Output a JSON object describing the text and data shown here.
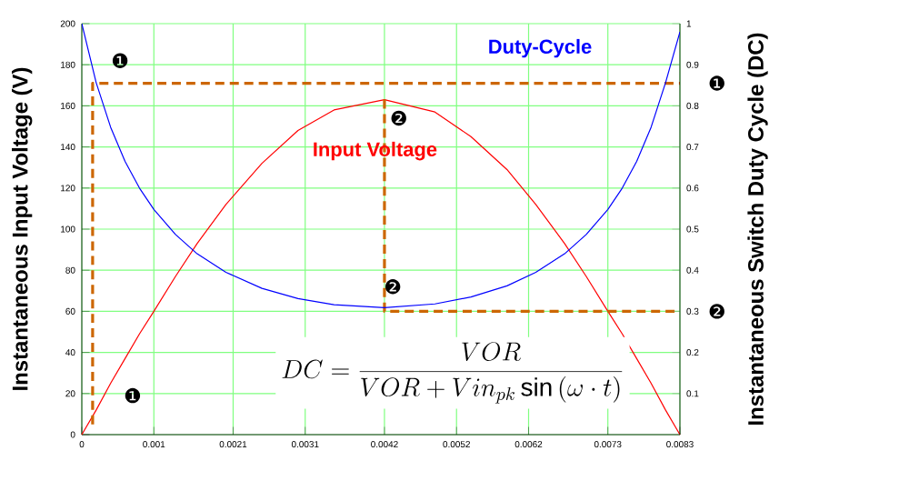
{
  "chart_data": {
    "type": "line",
    "ylabel": "Instantaneous Input Voltage (V)",
    "y2label": "Instantaneous Switch Duty Cycle (DC)",
    "xlim": [
      0,
      0.0083
    ],
    "ylim": [
      0,
      200
    ],
    "y2lim": [
      0,
      1
    ],
    "xticks": [
      0,
      0.001,
      0.0021,
      0.0031,
      0.0042,
      0.0052,
      0.0062,
      0.0073,
      0.0083
    ],
    "yticks": [
      0,
      20,
      40,
      60,
      80,
      100,
      120,
      140,
      160,
      180,
      200
    ],
    "y2ticks": [
      0.1,
      0.2,
      0.3,
      0.4,
      0.5,
      0.6,
      0.7,
      0.8,
      0.9,
      1
    ],
    "grid": true,
    "legend": false,
    "marker": "none",
    "series": [
      {
        "name": "Input Voltage",
        "color": "#ff0000",
        "x": [
          0,
          0.0002,
          0.0004,
          0.0006,
          0.0008,
          0.001,
          0.0013,
          0.0016,
          0.002,
          0.0025,
          0.003,
          0.0035,
          0.0042,
          0.0049,
          0.0054,
          0.0059,
          0.0063,
          0.0067,
          0.007,
          0.0073,
          0.0075,
          0.0077,
          0.0079,
          0.0081,
          0.0083
        ],
        "values": [
          0,
          12,
          25,
          37,
          49,
          60,
          77,
          93,
          112,
          132,
          148,
          158,
          163,
          157,
          145,
          129,
          112,
          93,
          77,
          60,
          49,
          37,
          25,
          12,
          0
        ]
      },
      {
        "name": "Duty-Cycle",
        "color": "#0000ff",
        "axis": "y2",
        "x": [
          0,
          0.0002,
          0.0004,
          0.0006,
          0.0008,
          0.001,
          0.0013,
          0.0016,
          0.002,
          0.0025,
          0.003,
          0.0035,
          0.0042,
          0.0049,
          0.0054,
          0.0059,
          0.0063,
          0.0067,
          0.007,
          0.0073,
          0.0075,
          0.0077,
          0.0079,
          0.0081,
          0.0083
        ],
        "values": [
          1,
          0.856,
          0.748,
          0.665,
          0.6,
          0.548,
          0.487,
          0.44,
          0.395,
          0.356,
          0.331,
          0.316,
          0.309,
          0.318,
          0.335,
          0.362,
          0.395,
          0.44,
          0.487,
          0.548,
          0.6,
          0.665,
          0.748,
          0.856,
          0.98
        ]
      },
      {
        "type": "line",
        "color": "#cc6600",
        "line_style": "dashed",
        "x": [
          0.00015,
          0.00015,
          0.0083
        ],
        "values": [
          5,
          171,
          171
        ]
      },
      {
        "type": "line",
        "color": "#cc6600",
        "line_style": "dashed",
        "x": [
          0.0042,
          0.0042,
          0.0083
        ],
        "values": [
          163,
          60,
          60
        ]
      }
    ],
    "annotations": [
      "❶",
      "❶",
      "❷",
      "❷",
      {
        "text": "❶",
        "x": 0.0083,
        "y": 171
      },
      {
        "text": "❷",
        "x": 0.0083,
        "y": 60
      },
      "DC=\\frac{VOR}{VOR+Vin_{pk}\\sin\\left(\\omega\\cdot t\\right)}"
    ]
  }
}
